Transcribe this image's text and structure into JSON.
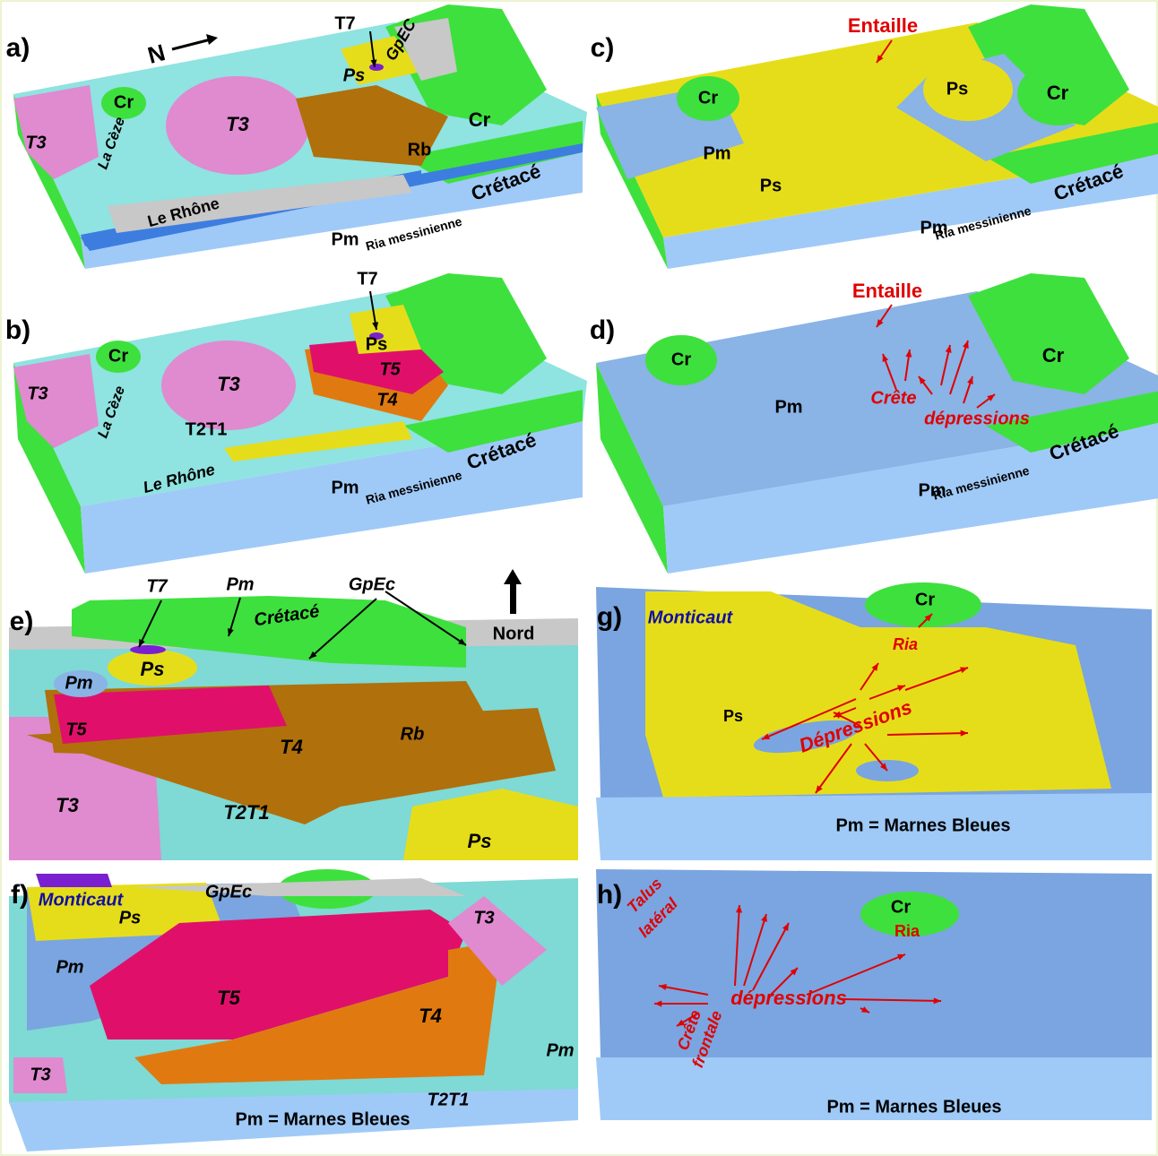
{
  "panels": [
    {
      "label": "a)",
      "texts": [
        "N",
        "T7",
        "GpEC",
        "Ps",
        "Cr",
        "Cr",
        "T3",
        "T3",
        "La Cèze",
        "Rb",
        "Le Rhône",
        "Pm",
        "Ria messinienne",
        "Crétacé"
      ]
    },
    {
      "label": "b)",
      "texts": [
        "T7",
        "Ps",
        "T5",
        "T4",
        "Cr",
        "T3",
        "T3",
        "La Cèze",
        "T2T1",
        "Le Rhône",
        "Pm",
        "Ria messinienne",
        "Crétacé"
      ]
    },
    {
      "label": "c)",
      "texts": [
        "Entaille",
        "Ps",
        "Cr",
        "Cr",
        "Pm",
        "Ps",
        "Crétacé",
        "Pm",
        "Ria messinienne"
      ]
    },
    {
      "label": "d)",
      "texts": [
        "Entaille",
        "Cr",
        "Cr",
        "Pm",
        "Crête",
        "dépressions",
        "Crétacé",
        "Pm",
        "Ria messinienne"
      ]
    },
    {
      "label": "e)",
      "texts": [
        "T7",
        "Pm",
        "GpEc",
        "Nord",
        "Crétacé",
        "Ps",
        "Pm",
        "T5",
        "T4",
        "Rb",
        "T3",
        "T2T1",
        "Ps"
      ]
    },
    {
      "label": "g)",
      "texts": [
        "Monticaut",
        "Cr",
        "Ria",
        "Ps",
        "Dépressions",
        "Pm = Marnes Bleues"
      ]
    },
    {
      "label": "f)",
      "texts": [
        "Monticaut",
        "GpEc",
        "Ps",
        "Pm",
        "T5",
        "T4",
        "T3",
        "T3",
        "T2T1",
        "Pm",
        "Pm = Marnes Bleues"
      ]
    },
    {
      "label": "h)",
      "texts": [
        "Talus",
        "latéral",
        "Cr",
        "Ria",
        "dépressions",
        "Crête",
        "frontale",
        "Pm = Marnes Bleues"
      ]
    }
  ]
}
